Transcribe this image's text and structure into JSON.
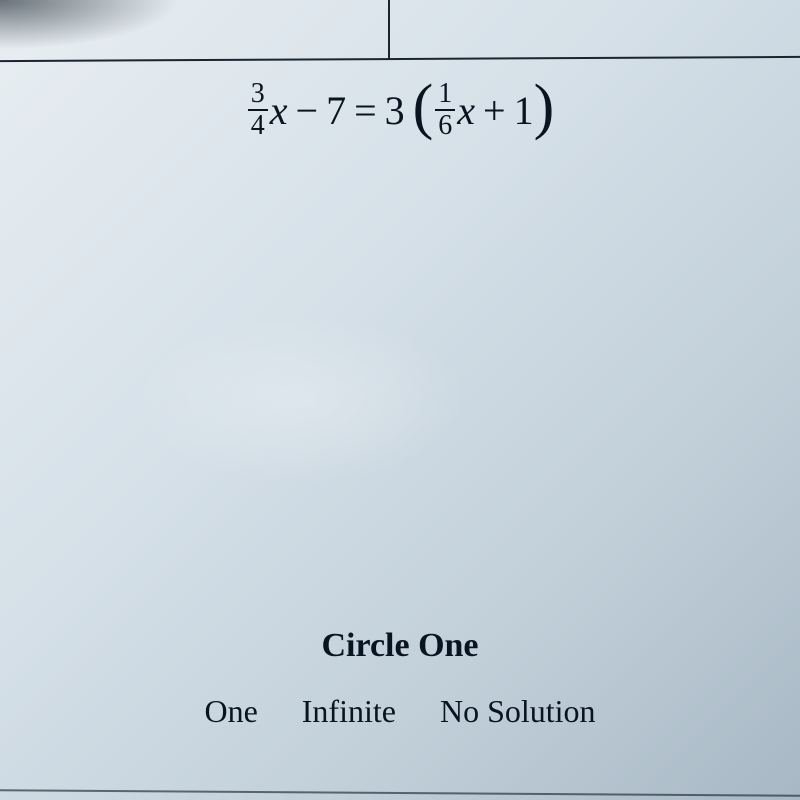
{
  "equation": {
    "lhs_frac_num": "3",
    "lhs_frac_den": "4",
    "lhs_var": "x",
    "minus": "−",
    "lhs_const": "7",
    "equals": "=",
    "rhs_coeff": "3",
    "rhs_frac_num": "1",
    "rhs_frac_den": "6",
    "rhs_var": "x",
    "plus": "+",
    "rhs_const": "1",
    "lparen": "(",
    "rparen": ")"
  },
  "prompt": {
    "title": "Circle One",
    "options": [
      "One",
      "Infinite",
      "No Solution"
    ]
  },
  "style": {
    "text_color": "#0a1420",
    "bg_gradient_from": "#e8eef2",
    "bg_gradient_to": "#a8b8c4",
    "line_color": "#1a2530",
    "equation_fontsize": 40,
    "frac_fontsize": 28,
    "paren_fontsize": 62,
    "title_fontsize": 34,
    "option_fontsize": 32,
    "option_gap": 44
  }
}
